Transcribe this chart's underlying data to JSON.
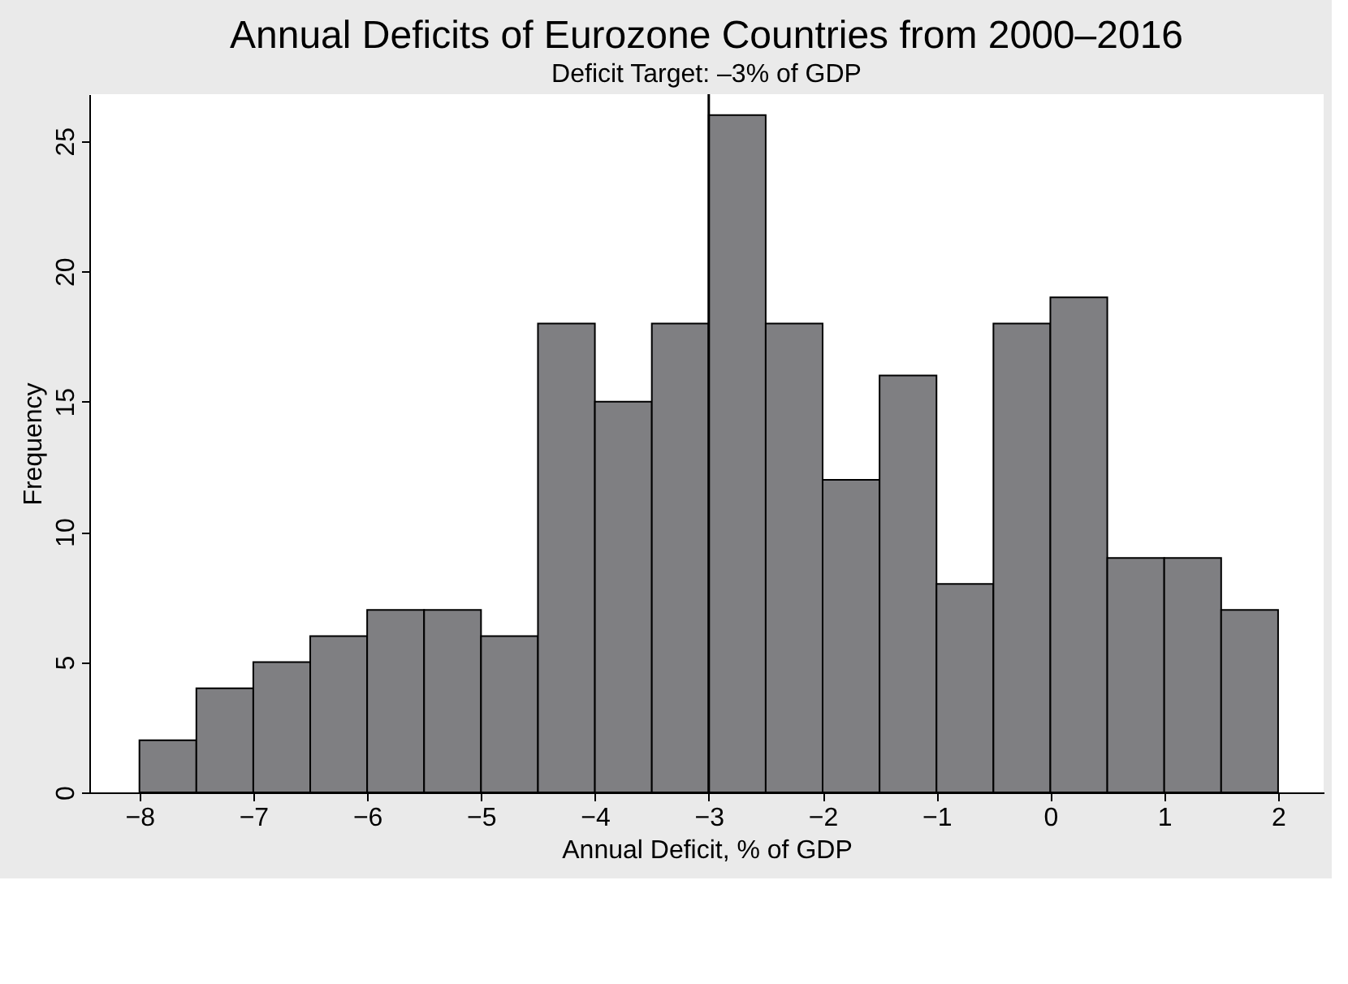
{
  "chart_data": {
    "type": "histogram",
    "title": "Annual Deficits of Eurozone Countries from 2000–2016",
    "subtitle": "Deficit Target: –3% of GDP",
    "xlabel": "Annual Deficit, % of GDP",
    "ylabel": "Frequency",
    "bins": [
      -8,
      -7.5,
      -7,
      -6.5,
      -6,
      -5.5,
      -5,
      -4.5,
      -4,
      -3.5,
      -3,
      -2.5,
      -2,
      -1.5,
      -1,
      -0.5,
      0,
      0.5,
      1,
      1.5,
      2
    ],
    "values": [
      2,
      4,
      5,
      6,
      7,
      7,
      6,
      18,
      15,
      18,
      26,
      18,
      12,
      16,
      8,
      18,
      19,
      9,
      9,
      7
    ],
    "color": "#7f7f82",
    "xlim": [
      -8.44,
      2.4
    ],
    "ylim": [
      0,
      26.8
    ],
    "xticks": [
      {
        "value": -8,
        "label": "−8"
      },
      {
        "value": -7,
        "label": "−7"
      },
      {
        "value": -6,
        "label": "−6"
      },
      {
        "value": -5,
        "label": "−5"
      },
      {
        "value": -4,
        "label": "−4"
      },
      {
        "value": -3,
        "label": "−3"
      },
      {
        "value": -2,
        "label": "−2"
      },
      {
        "value": -1,
        "label": "−1"
      },
      0,
      1,
      2
    ],
    "yticks": [
      0,
      5,
      10,
      15,
      20,
      25
    ],
    "ref_lines": [
      {
        "axis": "x",
        "value": -3,
        "color": "#000000"
      }
    ]
  }
}
